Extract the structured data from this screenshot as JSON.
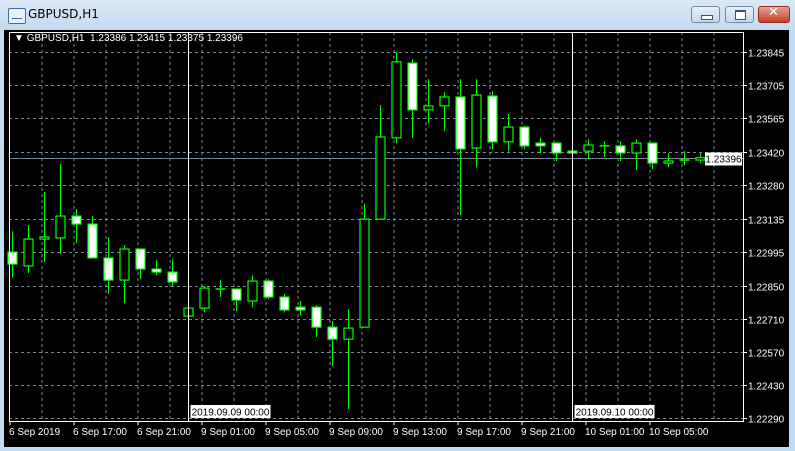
{
  "window": {
    "title": "GBPUSD,H1",
    "buttons": [
      "minimize",
      "maximize",
      "close"
    ]
  },
  "header": {
    "symbol": "GBPUSD,H1",
    "ohlc": "1.23386 1.23415 1.23375 1.23396"
  },
  "colors": {
    "background": "#000000",
    "candle_outline": "#00ff00",
    "bear_body": "#ffffff",
    "bull_body": "#000000",
    "grid": "#778899",
    "bid_line": "#778899",
    "axis_text": "#ffffff"
  },
  "chart_data": {
    "type": "candlestick",
    "timeframe": "H1",
    "price_ticks": [
      "1.23845",
      "1.23705",
      "1.23565",
      "1.23420",
      "1.23280",
      "1.23135",
      "1.22995",
      "1.22850",
      "1.22710",
      "1.22570",
      "1.22430",
      "1.22290"
    ],
    "ylim": [
      1.2229,
      1.23845
    ],
    "time_ticks": [
      "6 Sep 2019",
      "6 Sep 17:00",
      "6 Sep 21:00",
      "9 Sep 01:00",
      "9 Sep 05:00",
      "9 Sep 09:00",
      "9 Sep 13:00",
      "9 Sep 17:00",
      "9 Sep 21:00",
      "10 Sep 01:00",
      "10 Sep 05:00"
    ],
    "current_price": "1.23396",
    "vertical_lines": [
      {
        "bar": 11,
        "label": "2019.09.09 00:00"
      },
      {
        "bar": 35,
        "label": "2019.09.10 00:00"
      }
    ],
    "grid": true,
    "candles_ohlc": [
      [
        1.22995,
        1.23084,
        1.22885,
        1.22944
      ],
      [
        1.22936,
        1.2311,
        1.22906,
        1.2305
      ],
      [
        1.2305,
        1.2325,
        1.22953,
        1.23059
      ],
      [
        1.23055,
        1.23369,
        1.22987,
        1.23148
      ],
      [
        1.23148,
        1.23178,
        1.23033,
        1.23114
      ],
      [
        1.23114,
        1.23148,
        1.2297,
        1.2297
      ],
      [
        1.2297,
        1.23059,
        1.22817,
        1.22876
      ],
      [
        1.22876,
        1.23025,
        1.22778,
        1.23008
      ],
      [
        1.23008,
        1.23008,
        1.2288,
        1.22923
      ],
      [
        1.22923,
        1.22961,
        1.22897,
        1.2291
      ],
      [
        1.2291,
        1.22965,
        1.22851,
        1.22868
      ],
      [
        1.22723,
        1.22766,
        1.22719,
        1.22757
      ],
      [
        1.22757,
        1.22851,
        1.2274,
        1.22842
      ],
      [
        1.22838,
        1.22876,
        1.22804,
        1.22836
      ],
      [
        1.22838,
        1.22838,
        1.22744,
        1.22791
      ],
      [
        1.22787,
        1.22897,
        1.22761,
        1.22872
      ],
      [
        1.22872,
        1.2288,
        1.22795,
        1.22804
      ],
      [
        1.22804,
        1.22817,
        1.2274,
        1.22749
      ],
      [
        1.22761,
        1.22787,
        1.22727,
        1.22749
      ],
      [
        1.22761,
        1.2277,
        1.22634,
        1.22676
      ],
      [
        1.22676,
        1.22702,
        1.22511,
        1.22625
      ],
      [
        1.22625,
        1.22753,
        1.22328,
        1.22672
      ],
      [
        1.22676,
        1.23199,
        1.22676,
        1.23135
      ],
      [
        1.23135,
        1.2362,
        1.23135,
        1.23484
      ],
      [
        1.2348,
        1.23845,
        1.23458,
        1.23803
      ],
      [
        1.23798,
        1.23815,
        1.2348,
        1.23599
      ],
      [
        1.23599,
        1.2373,
        1.23543,
        1.23616
      ],
      [
        1.23616,
        1.23675,
        1.23509,
        1.23654
      ],
      [
        1.23654,
        1.2373,
        1.23152,
        1.23433
      ],
      [
        1.23437,
        1.2373,
        1.23356,
        1.23662
      ],
      [
        1.23658,
        1.23679,
        1.23433,
        1.23463
      ],
      [
        1.23463,
        1.23582,
        1.23424,
        1.23526
      ],
      [
        1.23526,
        1.23531,
        1.23433,
        1.23446
      ],
      [
        1.23458,
        1.2348,
        1.23416,
        1.23446
      ],
      [
        1.23458,
        1.23463,
        1.23382,
        1.23416
      ],
      [
        1.23424,
        1.23429,
        1.23412,
        1.23416
      ],
      [
        1.23424,
        1.23475,
        1.2339,
        1.2345
      ],
      [
        1.23446,
        1.23467,
        1.23399,
        1.23444
      ],
      [
        1.23446,
        1.23467,
        1.23382,
        1.23416
      ],
      [
        1.23416,
        1.23475,
        1.23344,
        1.23458
      ],
      [
        1.23458,
        1.23458,
        1.23348,
        1.23373
      ],
      [
        1.23373,
        1.23416,
        1.23356,
        1.23382
      ],
      [
        1.23382,
        1.23424,
        1.23365,
        1.23386
      ],
      [
        1.23386,
        1.23415,
        1.23375,
        1.23396
      ]
    ]
  }
}
